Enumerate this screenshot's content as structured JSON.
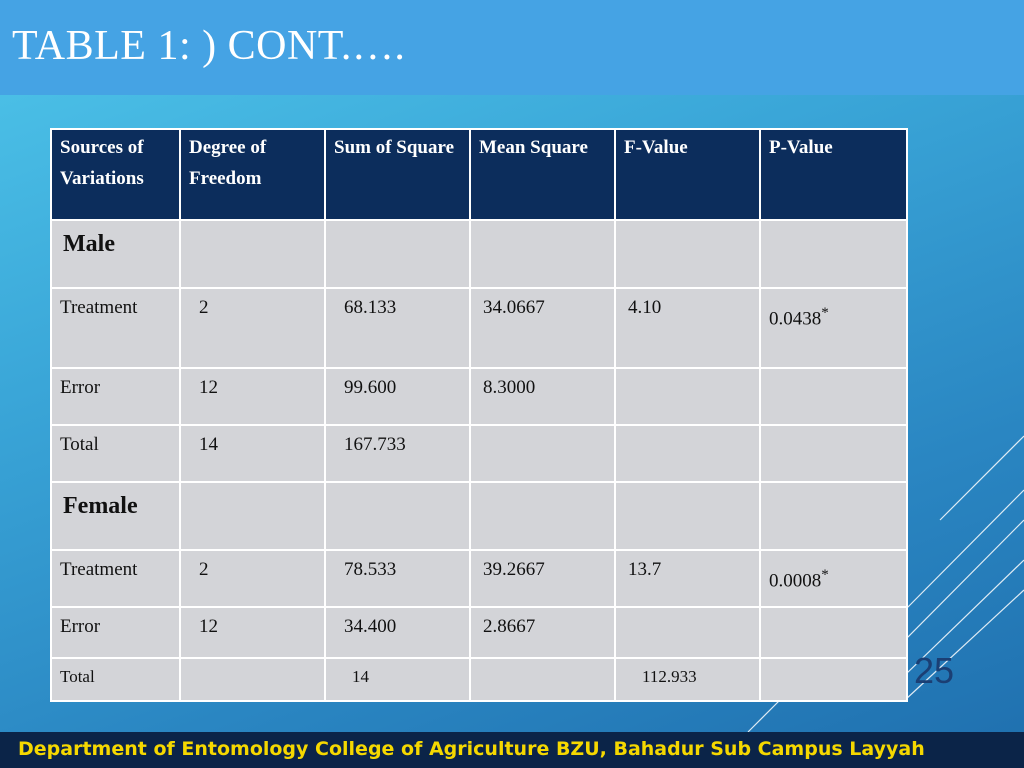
{
  "header": {
    "title": "TABLE 1: ) CONT.…."
  },
  "table": {
    "columns": [
      "Sources of Variations",
      "Degree of Freedom",
      "Sum of Square",
      "Mean Square",
      "F-Value",
      "P-Value"
    ],
    "rows": [
      [
        "Male",
        null,
        null,
        null,
        null,
        null
      ],
      [
        "Treatment",
        "2",
        "68.133",
        "34.0667",
        "4.10",
        {
          "text": "0.0438",
          "sup": "*"
        }
      ],
      [
        "Error",
        "12",
        "99.600",
        "8.3000",
        null,
        null
      ],
      [
        "Total",
        "14",
        "167.733",
        null,
        null,
        null
      ],
      [
        "Female",
        null,
        null,
        null,
        null,
        null
      ],
      [
        "Treatment",
        "2",
        "78.533",
        "39.2667",
        "13.7",
        {
          "text": "0.0008",
          "sup": "*"
        }
      ],
      [
        "Error",
        "12",
        "34.400",
        "2.8667",
        null,
        null
      ],
      [
        "Total",
        null,
        "14",
        null,
        "112.933",
        null
      ]
    ]
  },
  "page_number": "25",
  "footer": {
    "text": "Department of Entomology  College of Agriculture BZU, Bahadur Sub Campus Layyah"
  }
}
